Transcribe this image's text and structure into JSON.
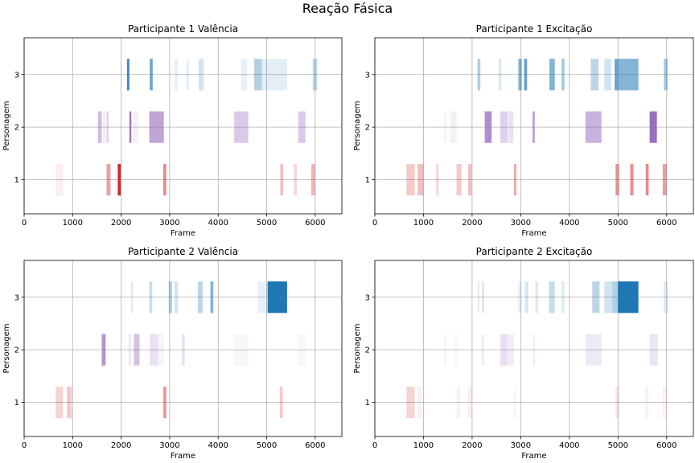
{
  "suptitle": "Reação Fásica",
  "colors": {
    "char1": "#d62728",
    "char2": "#9467bd",
    "char3": "#1f77b4",
    "grid": "#b0b0b0"
  },
  "chart_data": [
    {
      "type": "bar",
      "title": "Participante 1 Valência",
      "xlabel": "Frame",
      "ylabel": "Personagem",
      "xlim": [
        0,
        6550
      ],
      "ylim": [
        0.35,
        3.7
      ],
      "xticks": [
        0,
        1000,
        2000,
        3000,
        4000,
        5000,
        6000
      ],
      "yticks": [
        1,
        2,
        3
      ],
      "grid": true,
      "series": [
        {
          "y": 1,
          "segments": [
            [
              650,
              800,
              0.08
            ],
            [
              1700,
              1780,
              0.45
            ],
            [
              1930,
              1990,
              1.0
            ],
            [
              2870,
              2930,
              0.55
            ],
            [
              5280,
              5340,
              0.3
            ],
            [
              5560,
              5620,
              0.2
            ],
            [
              5920,
              6000,
              0.35
            ]
          ]
        },
        {
          "y": 2,
          "segments": [
            [
              1520,
              1600,
              0.45
            ],
            [
              1620,
              1680,
              0.12
            ],
            [
              1700,
              1740,
              0.3
            ],
            [
              2170,
              2210,
              0.9
            ],
            [
              2250,
              2350,
              0.1
            ],
            [
              2580,
              2880,
              0.6
            ],
            [
              4330,
              4620,
              0.35
            ],
            [
              5650,
              5800,
              0.35
            ]
          ]
        },
        {
          "y": 3,
          "segments": [
            [
              2120,
              2170,
              0.85
            ],
            [
              2590,
              2650,
              0.65
            ],
            [
              3100,
              3170,
              0.1
            ],
            [
              3340,
              3400,
              0.1
            ],
            [
              3600,
              3700,
              0.2
            ],
            [
              4470,
              4600,
              0.1
            ],
            [
              4740,
              4900,
              0.35
            ],
            [
              4900,
              5420,
              0.12
            ],
            [
              5950,
              6040,
              0.3
            ]
          ]
        }
      ]
    },
    {
      "type": "bar",
      "title": "Participante 1 Excitação",
      "xlabel": "Frame",
      "ylabel": "Personagem",
      "xlim": [
        0,
        6550
      ],
      "ylim": [
        0.35,
        3.7
      ],
      "xticks": [
        0,
        1000,
        2000,
        3000,
        4000,
        5000,
        6000
      ],
      "yticks": [
        1,
        2,
        3
      ],
      "grid": true,
      "series": [
        {
          "y": 1,
          "segments": [
            [
              650,
              820,
              0.25
            ],
            [
              880,
              1000,
              0.3
            ],
            [
              1260,
              1310,
              0.2
            ],
            [
              1680,
              1780,
              0.25
            ],
            [
              1920,
              1990,
              0.3
            ],
            [
              2860,
              2910,
              0.4
            ],
            [
              4950,
              5020,
              0.5
            ],
            [
              5250,
              5320,
              0.5
            ],
            [
              5570,
              5630,
              0.55
            ],
            [
              5920,
              6000,
              0.45
            ]
          ]
        },
        {
          "y": 2,
          "segments": [
            [
              1430,
              1470,
              0.1
            ],
            [
              1550,
              1680,
              0.1
            ],
            [
              2260,
              2400,
              0.75
            ],
            [
              2580,
              2730,
              0.3
            ],
            [
              2740,
              2850,
              0.2
            ],
            [
              3240,
              3290,
              0.6
            ],
            [
              4330,
              4660,
              0.5
            ],
            [
              5650,
              5800,
              0.95
            ]
          ]
        },
        {
          "y": 3,
          "segments": [
            [
              2110,
              2170,
              0.35
            ],
            [
              2540,
              2600,
              0.15
            ],
            [
              2950,
              3020,
              0.55
            ],
            [
              3070,
              3130,
              0.7
            ],
            [
              3590,
              3700,
              0.55
            ],
            [
              3840,
              3900,
              0.4
            ],
            [
              4440,
              4600,
              0.3
            ],
            [
              4720,
              4860,
              0.2
            ],
            [
              4930,
              5000,
              0.65
            ],
            [
              5000,
              5420,
              0.55
            ],
            [
              5940,
              6020,
              0.4
            ]
          ]
        }
      ]
    },
    {
      "type": "bar",
      "title": "Participante 2 Valência",
      "xlabel": "Frame",
      "ylabel": "Personagem",
      "xlim": [
        0,
        6550
      ],
      "ylim": [
        0.35,
        3.7
      ],
      "xticks": [
        0,
        1000,
        2000,
        3000,
        4000,
        5000,
        6000
      ],
      "yticks": [
        1,
        2,
        3
      ],
      "grid": true,
      "series": [
        {
          "y": 1,
          "segments": [
            [
              650,
              800,
              0.2
            ],
            [
              880,
              980,
              0.25
            ],
            [
              2870,
              2930,
              0.5
            ],
            [
              5270,
              5330,
              0.25
            ]
          ]
        },
        {
          "y": 2,
          "segments": [
            [
              1600,
              1680,
              0.7
            ],
            [
              2150,
              2210,
              0.15
            ],
            [
              2260,
              2380,
              0.4
            ],
            [
              2590,
              2760,
              0.2
            ],
            [
              2760,
              2880,
              0.08
            ],
            [
              3250,
              3310,
              0.2
            ],
            [
              4330,
              4620,
              0.06
            ],
            [
              5650,
              5800,
              0.06
            ]
          ]
        },
        {
          "y": 3,
          "segments": [
            [
              2200,
              2240,
              0.15
            ],
            [
              2580,
              2640,
              0.25
            ],
            [
              2980,
              3050,
              0.35
            ],
            [
              3100,
              3170,
              0.2
            ],
            [
              3580,
              3680,
              0.3
            ],
            [
              3840,
              3900,
              0.55
            ],
            [
              4820,
              5020,
              0.1
            ],
            [
              5020,
              5420,
              1.0
            ]
          ]
        }
      ]
    },
    {
      "type": "bar",
      "title": "Participante 2 Excitação",
      "xlabel": "Frame",
      "ylabel": "Personagem",
      "xlim": [
        0,
        6550
      ],
      "ylim": [
        0.35,
        3.7
      ],
      "xticks": [
        0,
        1000,
        2000,
        3000,
        4000,
        5000,
        6000
      ],
      "yticks": [
        1,
        2,
        3
      ],
      "grid": true,
      "series": [
        {
          "y": 1,
          "segments": [
            [
              650,
              820,
              0.2
            ],
            [
              870,
              960,
              0.07
            ],
            [
              1680,
              1760,
              0.07
            ],
            [
              1920,
              1990,
              0.08
            ],
            [
              2860,
              2910,
              0.05
            ],
            [
              4950,
              5020,
              0.12
            ],
            [
              5560,
              5620,
              0.07
            ],
            [
              5920,
              6000,
              0.08
            ]
          ]
        },
        {
          "y": 2,
          "segments": [
            [
              1430,
              1470,
              0.08
            ],
            [
              1640,
              1700,
              0.06
            ],
            [
              2190,
              2250,
              0.12
            ],
            [
              2580,
              2720,
              0.22
            ],
            [
              2720,
              2860,
              0.12
            ],
            [
              3250,
              3290,
              0.12
            ],
            [
              4330,
              4660,
              0.15
            ],
            [
              5650,
              5820,
              0.18
            ]
          ]
        },
        {
          "y": 3,
          "segments": [
            [
              2110,
              2160,
              0.1
            ],
            [
              2200,
              2250,
              0.15
            ],
            [
              2940,
              3020,
              0.1
            ],
            [
              3090,
              3150,
              0.2
            ],
            [
              3300,
              3360,
              0.15
            ],
            [
              3580,
              3700,
              0.25
            ],
            [
              3840,
              3900,
              0.15
            ],
            [
              4470,
              4620,
              0.3
            ],
            [
              4720,
              4880,
              0.2
            ],
            [
              4880,
              5000,
              0.35
            ],
            [
              5000,
              5420,
              1.0
            ],
            [
              5940,
              6020,
              0.15
            ]
          ]
        }
      ]
    }
  ]
}
